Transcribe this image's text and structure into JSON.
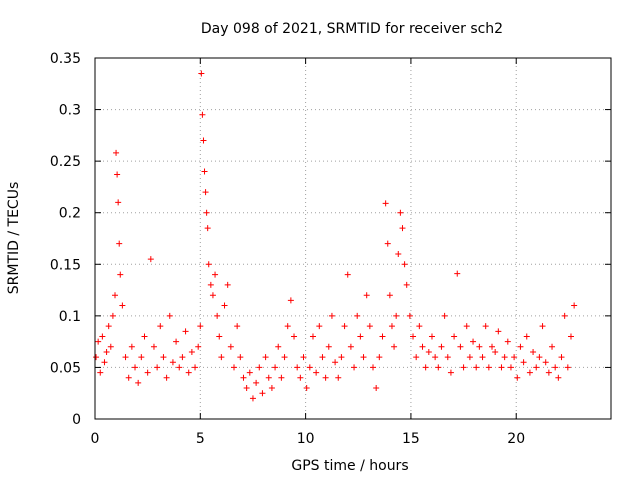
{
  "chart_data": {
    "type": "scatter",
    "title": "Day 098 of 2021, SRMTID for receiver sch2",
    "xlabel": "GPS time / hours",
    "ylabel": "SRMTID / TECUs",
    "xlim": [
      0,
      24.5
    ],
    "ylim": [
      0,
      0.35
    ],
    "xticks": [
      0,
      5,
      10,
      15,
      20
    ],
    "yticks": [
      0,
      0.05,
      0.1,
      0.15,
      0.2,
      0.25,
      0.3,
      0.35
    ],
    "xtick_labels": [
      "0",
      "5",
      "10",
      "15",
      "20"
    ],
    "ytick_labels": [
      "0",
      "0.05",
      "0.1",
      "0.15",
      "0.2",
      "0.25",
      "0.3",
      "0.35"
    ],
    "grid": true,
    "marker": "+",
    "color": "#ff0000",
    "series": [
      {
        "name": "SRMTID",
        "x": [
          0.05,
          0.15,
          0.25,
          0.35,
          0.45,
          0.55,
          0.65,
          0.75,
          0.85,
          0.95,
          1.0,
          1.05,
          1.1,
          1.15,
          1.2,
          1.3,
          1.45,
          1.6,
          1.75,
          1.9,
          2.05,
          2.2,
          2.35,
          2.5,
          2.65,
          2.8,
          2.95,
          3.1,
          3.25,
          3.4,
          3.55,
          3.7,
          3.85,
          4.0,
          4.15,
          4.3,
          4.45,
          4.6,
          4.75,
          4.9,
          5.0,
          5.05,
          5.1,
          5.15,
          5.2,
          5.25,
          5.3,
          5.35,
          5.4,
          5.5,
          5.6,
          5.7,
          5.8,
          5.9,
          6.0,
          6.15,
          6.3,
          6.45,
          6.6,
          6.75,
          6.9,
          7.05,
          7.2,
          7.35,
          7.5,
          7.65,
          7.8,
          7.95,
          8.1,
          8.25,
          8.4,
          8.55,
          8.7,
          8.85,
          9.0,
          9.15,
          9.3,
          9.45,
          9.6,
          9.75,
          9.9,
          10.05,
          10.2,
          10.35,
          10.5,
          10.65,
          10.8,
          10.95,
          11.1,
          11.25,
          11.4,
          11.55,
          11.7,
          11.85,
          12.0,
          12.15,
          12.3,
          12.45,
          12.6,
          12.75,
          12.9,
          13.05,
          13.2,
          13.35,
          13.5,
          13.65,
          13.8,
          13.9,
          14.0,
          14.1,
          14.2,
          14.3,
          14.4,
          14.5,
          14.6,
          14.7,
          14.8,
          14.95,
          15.1,
          15.25,
          15.4,
          15.55,
          15.7,
          15.85,
          16.0,
          16.15,
          16.3,
          16.45,
          16.6,
          16.75,
          16.9,
          17.05,
          17.2,
          17.35,
          17.5,
          17.65,
          17.8,
          17.95,
          18.1,
          18.25,
          18.4,
          18.55,
          18.7,
          18.85,
          19.0,
          19.15,
          19.3,
          19.45,
          19.6,
          19.75,
          19.9,
          20.05,
          20.2,
          20.35,
          20.5,
          20.65,
          20.8,
          20.95,
          21.1,
          21.25,
          21.4,
          21.55,
          21.7,
          21.85,
          22.0,
          22.15,
          22.3,
          22.45,
          22.6,
          22.75
        ],
        "y": [
          0.06,
          0.075,
          0.045,
          0.08,
          0.055,
          0.065,
          0.09,
          0.07,
          0.1,
          0.12,
          0.258,
          0.237,
          0.21,
          0.17,
          0.14,
          0.11,
          0.06,
          0.04,
          0.07,
          0.05,
          0.035,
          0.06,
          0.08,
          0.045,
          0.155,
          0.07,
          0.05,
          0.09,
          0.06,
          0.04,
          0.1,
          0.055,
          0.075,
          0.05,
          0.06,
          0.085,
          0.045,
          0.065,
          0.05,
          0.07,
          0.09,
          0.335,
          0.295,
          0.27,
          0.24,
          0.22,
          0.2,
          0.185,
          0.15,
          0.13,
          0.12,
          0.14,
          0.1,
          0.08,
          0.06,
          0.11,
          0.13,
          0.07,
          0.05,
          0.09,
          0.06,
          0.04,
          0.03,
          0.045,
          0.02,
          0.035,
          0.05,
          0.025,
          0.06,
          0.04,
          0.03,
          0.05,
          0.07,
          0.04,
          0.06,
          0.09,
          0.115,
          0.08,
          0.05,
          0.04,
          0.06,
          0.03,
          0.05,
          0.08,
          0.045,
          0.09,
          0.06,
          0.04,
          0.07,
          0.1,
          0.055,
          0.04,
          0.06,
          0.09,
          0.14,
          0.07,
          0.05,
          0.1,
          0.08,
          0.06,
          0.12,
          0.09,
          0.05,
          0.03,
          0.06,
          0.08,
          0.209,
          0.17,
          0.12,
          0.09,
          0.07,
          0.1,
          0.16,
          0.2,
          0.185,
          0.15,
          0.13,
          0.1,
          0.08,
          0.06,
          0.09,
          0.07,
          0.05,
          0.065,
          0.08,
          0.06,
          0.05,
          0.07,
          0.1,
          0.06,
          0.045,
          0.08,
          0.141,
          0.07,
          0.05,
          0.09,
          0.06,
          0.075,
          0.05,
          0.07,
          0.06,
          0.09,
          0.05,
          0.07,
          0.065,
          0.085,
          0.05,
          0.06,
          0.075,
          0.05,
          0.06,
          0.04,
          0.07,
          0.055,
          0.08,
          0.045,
          0.065,
          0.05,
          0.06,
          0.09,
          0.055,
          0.045,
          0.07,
          0.05,
          0.04,
          0.06,
          0.1,
          0.05,
          0.08,
          0.11
        ]
      }
    ]
  }
}
